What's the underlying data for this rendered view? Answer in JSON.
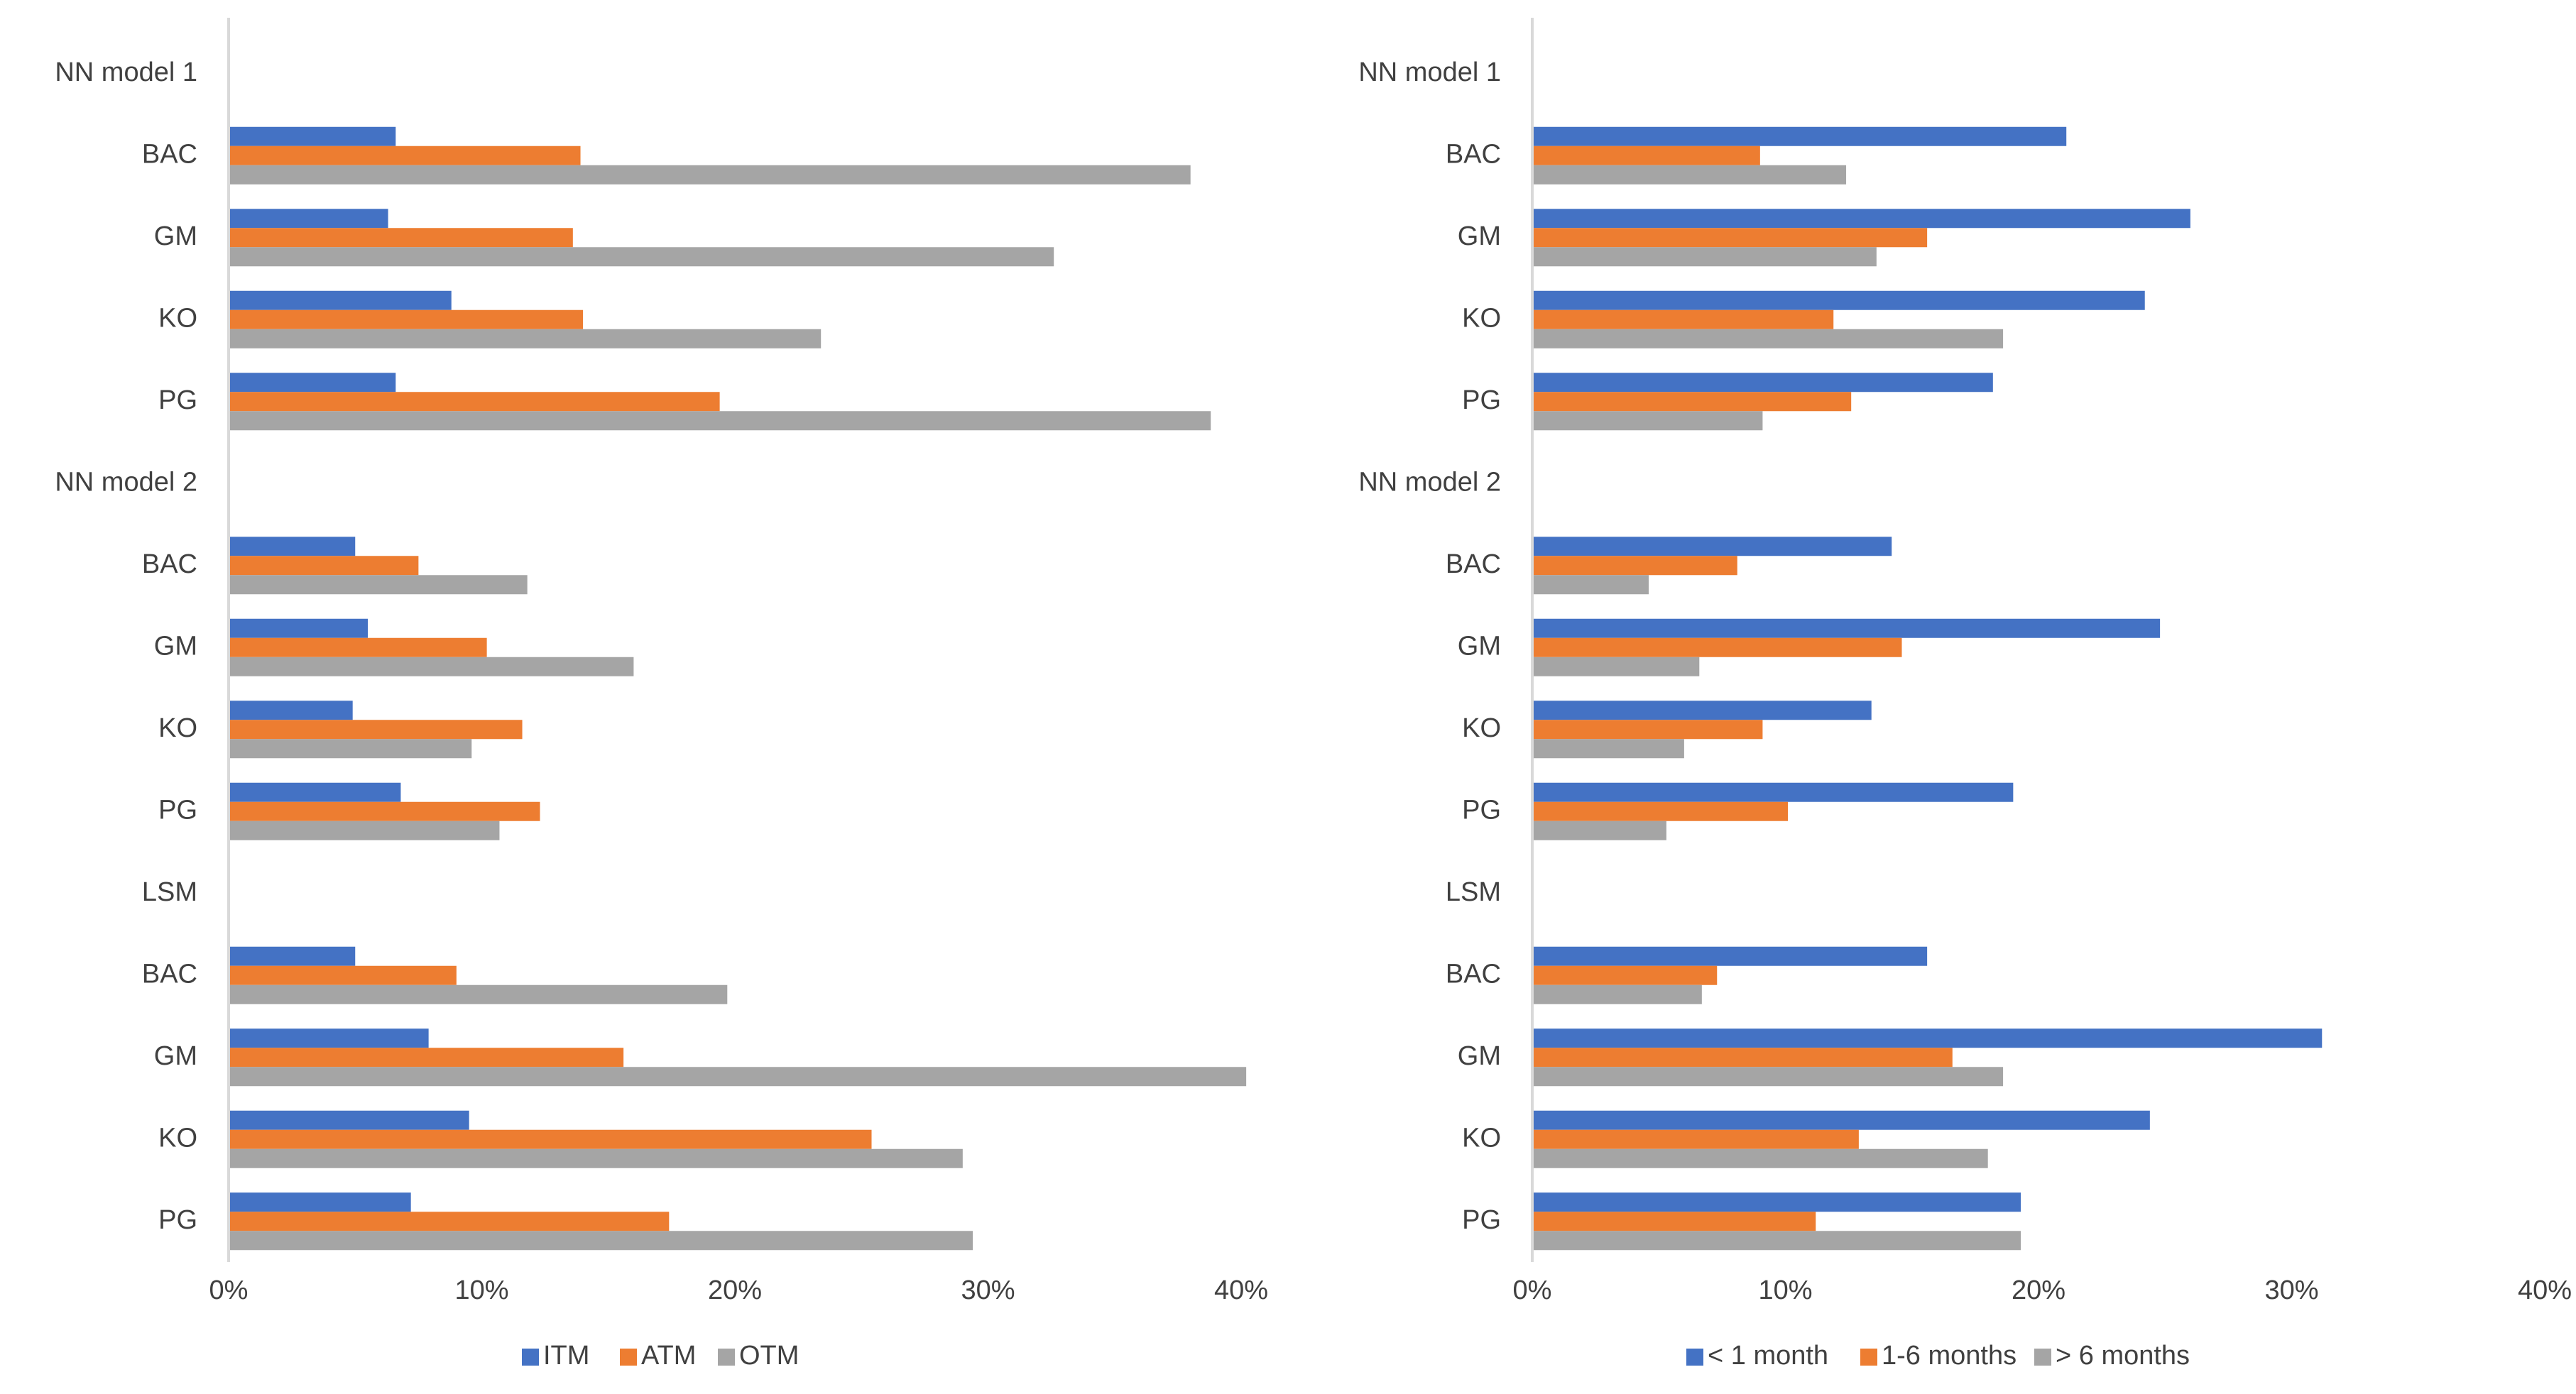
{
  "colors": {
    "series1": "#4472C4",
    "series2": "#ED7D31",
    "series3": "#A5A5A5",
    "axis": "#D9D9D9",
    "text": "#404040"
  },
  "chart_data": [
    {
      "type": "bar",
      "orientation": "horizontal",
      "title": "",
      "xlabel": "",
      "ylabel": "",
      "xlim": [
        0,
        40
      ],
      "x_tick_labels": [
        "0%",
        "10%",
        "20%",
        "30%",
        "40%"
      ],
      "grid": false,
      "legend_position": "bottom",
      "categories": [
        "NN model 1",
        "BAC",
        "GM",
        "KO",
        "PG",
        "NN model 2",
        "BAC",
        "GM",
        "KO",
        "PG",
        "LSM",
        "BAC",
        "GM",
        "KO",
        "PG"
      ],
      "series": [
        {
          "name": "ITM",
          "values": [
            null,
            6.6,
            6.3,
            8.8,
            6.6,
            null,
            5.0,
            5.5,
            4.9,
            6.8,
            null,
            5.0,
            7.9,
            9.5,
            7.2
          ]
        },
        {
          "name": "ATM",
          "values": [
            null,
            13.9,
            13.6,
            14.0,
            19.4,
            null,
            7.5,
            10.2,
            11.6,
            12.3,
            null,
            9.0,
            15.6,
            25.4,
            17.4
          ]
        },
        {
          "name": "OTM",
          "values": [
            null,
            38.0,
            32.6,
            23.4,
            38.8,
            null,
            11.8,
            16.0,
            9.6,
            10.7,
            null,
            19.7,
            40.2,
            29.0,
            29.4
          ]
        }
      ]
    },
    {
      "type": "bar",
      "orientation": "horizontal",
      "title": "",
      "xlabel": "",
      "ylabel": "",
      "xlim": [
        0,
        40
      ],
      "x_tick_labels": [
        "0%",
        "10%",
        "20%",
        "30%",
        "40%"
      ],
      "grid": false,
      "legend_position": "bottom",
      "categories": [
        "NN model 1",
        "BAC",
        "GM",
        "KO",
        "PG",
        "NN model 2",
        "BAC",
        "GM",
        "KO",
        "PG",
        "LSM",
        "BAC",
        "GM",
        "KO",
        "PG"
      ],
      "series": [
        {
          "name": "< 1 month",
          "values": [
            null,
            21.1,
            26.0,
            24.2,
            18.2,
            null,
            14.2,
            24.8,
            13.4,
            19.0,
            null,
            15.6,
            31.2,
            24.4,
            19.3
          ]
        },
        {
          "name": "1-6 months",
          "values": [
            null,
            9.0,
            15.6,
            11.9,
            12.6,
            null,
            8.1,
            14.6,
            9.1,
            10.1,
            null,
            7.3,
            16.6,
            12.9,
            11.2
          ]
        },
        {
          "name": "> 6 months",
          "values": [
            null,
            12.4,
            13.6,
            18.6,
            9.1,
            null,
            4.6,
            6.6,
            6.0,
            5.3,
            null,
            6.7,
            18.6,
            18.0,
            19.3
          ]
        }
      ]
    }
  ]
}
